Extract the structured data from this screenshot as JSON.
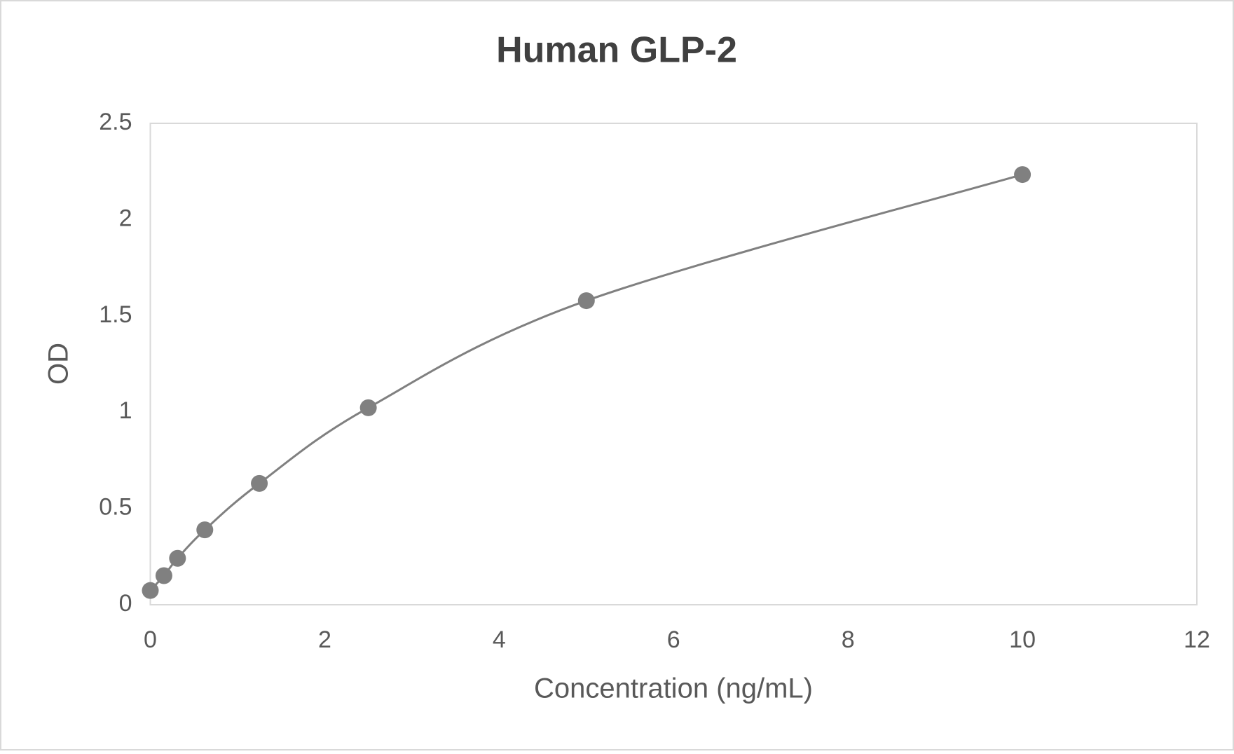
{
  "chart_data": {
    "type": "scatter",
    "title": "Human GLP-2",
    "x_label": "Concentration (ng/mL)",
    "y_label": "OD",
    "series": [
      {
        "name": "Human GLP-2",
        "color": "#808080",
        "x": [
          0,
          0.156,
          0.312,
          0.625,
          1.25,
          2.5,
          5,
          10
        ],
        "values": [
          0.074,
          0.151,
          0.241,
          0.389,
          0.63,
          1.023,
          1.579,
          2.234
        ]
      }
    ],
    "xlim": [
      0,
      12
    ],
    "xticks": [
      0,
      2,
      4,
      6,
      8,
      10,
      12
    ],
    "ylim": [
      0,
      2.5
    ],
    "yticks": [
      0,
      0.5,
      1,
      1.5,
      2,
      2.5
    ],
    "smooth": true,
    "grid": false
  }
}
